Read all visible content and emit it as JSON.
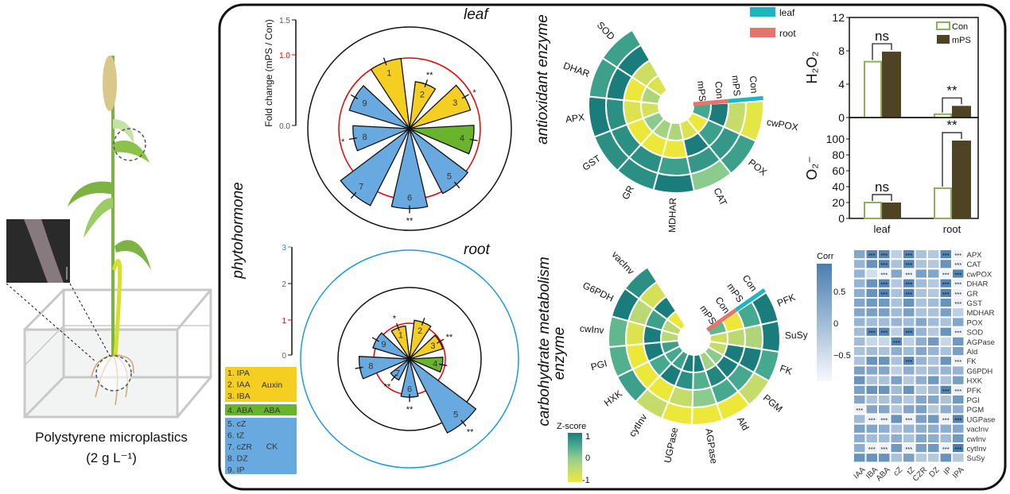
{
  "illustration": {
    "caption_line1": "Polystyrene microplastics",
    "caption_line2": "(2 g L⁻¹)"
  },
  "titles": {
    "leaf": "leaf",
    "root": "root",
    "phytohormone": "phytohormone",
    "antioxidant": "antioxidant enzyme",
    "carbohydrate_1": "carbohydrate metabolism",
    "carbohydrate_2": "enzyme"
  },
  "colors": {
    "auxin": "#F5CE22",
    "aba": "#6AB42D",
    "ck": "#68AADF",
    "leaf_bar": "#1FB5C0",
    "root_bar": "#E8736A",
    "con_bar_edge": "#8DB05A",
    "mps_bar": "#4E4424"
  },
  "phytohormone_legend": {
    "groups": [
      {
        "name": "Auxin",
        "items": [
          "1. IPA",
          "2. IAA",
          "3. IBA"
        ]
      },
      {
        "name": "ABA",
        "items": [
          "4. ABA"
        ]
      },
      {
        "name": "CK",
        "items": [
          "5. cZ",
          "6. tZ",
          "7. cZR",
          "8. DZ",
          "9. IP"
        ]
      }
    ]
  },
  "chart_data": [
    {
      "type": "rose",
      "panel": "leaf",
      "ylabel": "Fold change (mPS / Con)",
      "ticks": [
        "1.5",
        "1.0",
        "0.0"
      ],
      "ylim": [
        0,
        1.5
      ],
      "reference_circle": 1.0,
      "categories": [
        "1",
        "2",
        "3",
        "4",
        "5",
        "6",
        "7",
        "8",
        "9"
      ],
      "groups": [
        "auxin",
        "auxin",
        "auxin",
        "aba",
        "ck",
        "ck",
        "ck",
        "ck",
        "ck"
      ],
      "values": [
        1.0,
        0.67,
        0.9,
        0.91,
        1.03,
        1.13,
        1.22,
        0.8,
        0.89
      ],
      "significance": [
        "",
        "**",
        "*",
        "",
        "",
        "**",
        "",
        "*",
        ""
      ]
    },
    {
      "type": "rose",
      "panel": "root",
      "ticks": [
        "3",
        "2",
        "1",
        "0"
      ],
      "ylim": [
        0,
        3
      ],
      "reference_circle": 1.0,
      "categories": [
        "1",
        "2",
        "3",
        "4",
        "5",
        "6",
        "7",
        "8",
        "9"
      ],
      "groups": [
        "auxin",
        "auxin",
        "auxin",
        "aba",
        "ck",
        "ck",
        "ck",
        "ck",
        "ck"
      ],
      "values": [
        0.93,
        1.09,
        0.97,
        0.93,
        2.32,
        1.07,
        0.66,
        1.41,
        1.07
      ],
      "significance": [
        "*",
        "",
        "**",
        "",
        "**",
        "**",
        "**",
        "",
        ""
      ]
    },
    {
      "type": "heatmap",
      "layout": "circular",
      "panel": "antioxidant enzyme",
      "rings": [
        "mPS",
        "Con",
        "mPS",
        "Con"
      ],
      "ring_tissue": [
        "root",
        "root",
        "leaf",
        "leaf"
      ],
      "legend": [
        "leaf",
        "root"
      ],
      "categories": [
        "cwPOX",
        "POX",
        "CAT",
        "MDHAR",
        "GR",
        "GST",
        "APX",
        "DHAR",
        "SOD"
      ],
      "zscores": [
        [
          0.5,
          1,
          -0.5,
          -0.9
        ],
        [
          -1,
          0.6,
          0.7,
          0.6
        ],
        [
          -0.8,
          1,
          0.7,
          0
        ],
        [
          -0.3,
          -1,
          0.6,
          1
        ],
        [
          -0.2,
          -1,
          0.8,
          0.8
        ],
        [
          0,
          -1,
          0.8,
          0.8
        ],
        [
          -0.7,
          -0.8,
          0.8,
          1
        ],
        [
          -0.3,
          -1,
          1,
          0.6
        ],
        [
          -0.8,
          -0.6,
          1,
          0.6
        ]
      ]
    },
    {
      "type": "heatmap",
      "layout": "circular",
      "panel": "carbohydrate metabolism enzyme",
      "rings": [
        "mPS",
        "Con",
        "mPS",
        "Con"
      ],
      "ring_tissue": [
        "root",
        "root",
        "leaf",
        "leaf"
      ],
      "categories": [
        "PFK",
        "SuSy",
        "FK",
        "PGM",
        "Ald",
        "AGPase",
        "UGPase",
        "cytInv",
        "HXK",
        "PGI",
        "cwInv",
        "G6PDH",
        "vacInv"
      ],
      "zscores": [
        [
          0.3,
          -1,
          0.5,
          1
        ],
        [
          -0.6,
          -0.4,
          -0.3,
          1
        ],
        [
          -0.5,
          1,
          1,
          0.5
        ],
        [
          0,
          1,
          0.5,
          -0.5
        ],
        [
          -0.2,
          0.9,
          0.5,
          -1
        ],
        [
          1,
          0.4,
          0,
          -1
        ],
        [
          1,
          0.8,
          -0.5,
          -1
        ],
        [
          0.6,
          1,
          -1,
          -0.5
        ],
        [
          0.5,
          0.5,
          -1,
          0.6
        ],
        [
          0.6,
          1,
          -1,
          0.4
        ],
        [
          -0.4,
          1,
          -0.8,
          0.3
        ],
        [
          -0.4,
          0.6,
          -0.4,
          1
        ],
        [
          -1,
          1,
          -0.7,
          0.8
        ]
      ],
      "colorbar": {
        "title": "Z-score",
        "ticks": [
          "1",
          "0",
          "-1"
        ],
        "range": [
          -1,
          1
        ]
      }
    },
    {
      "type": "bar",
      "ylabel": "H₂O₂",
      "categories": [
        "leaf",
        "root"
      ],
      "series": [
        {
          "name": "Con",
          "values": [
            6.7,
            0.4
          ]
        },
        {
          "name": "mPS",
          "values": [
            7.9,
            1.4
          ]
        }
      ],
      "ylim": [
        0,
        12
      ],
      "ticks": [
        "12",
        "8",
        "4",
        "0"
      ],
      "significance": [
        "ns",
        "**"
      ]
    },
    {
      "type": "bar",
      "ylabel": "O₂⁻",
      "categories": [
        "leaf",
        "root"
      ],
      "series": [
        {
          "name": "Con",
          "values": [
            20,
            38
          ]
        },
        {
          "name": "mPS",
          "values": [
            20,
            98
          ]
        }
      ],
      "ylim": [
        0,
        105
      ],
      "ticks": [
        "100",
        "80",
        "60",
        "40",
        "20",
        "0"
      ],
      "significance": [
        "ns",
        "**"
      ]
    },
    {
      "type": "heatmap",
      "panel": "correlation",
      "colorbar": {
        "title": "Corr",
        "ticks": [
          "0.5",
          "0",
          "−0.5"
        ]
      },
      "columns": [
        "IAA",
        "IBA",
        "ABA",
        "cZ",
        "tZ",
        "CZR",
        "DZ",
        "IP",
        "IPA"
      ],
      "rows": [
        "APX",
        "CAT",
        "cwPOX",
        "DHAR",
        "GR",
        "GST",
        "MDHAR",
        "POX",
        "SOD",
        "AGPase",
        "Ald",
        "FK",
        "G6PDH",
        "HXK",
        "PFK",
        "PGI",
        "PGM",
        "UGPase",
        "vacInv",
        "cwInv",
        "cytInv",
        "SuSy"
      ],
      "values": [
        [
          0.3,
          0.8,
          0.8,
          -0.3,
          0.8,
          -0.1,
          -0.2,
          0.8,
          -0.8
        ],
        [
          0.1,
          0.6,
          0.8,
          -0.1,
          0.8,
          -0.1,
          -0.2,
          0.6,
          -0.8
        ],
        [
          0.1,
          -0.5,
          -0.8,
          0.3,
          -0.8,
          0.4,
          0.3,
          -0.8,
          0.8
        ],
        [
          0.1,
          0.6,
          0.8,
          -0.2,
          0.8,
          0.0,
          -0.2,
          0.8,
          -0.8
        ],
        [
          0.2,
          0.6,
          0.8,
          -0.1,
          0.8,
          -0.1,
          -0.2,
          0.8,
          -0.8
        ],
        [
          0.3,
          0.5,
          0.5,
          -0.1,
          0.6,
          -0.1,
          0.0,
          0.6,
          -0.8
        ],
        [
          0.3,
          0.4,
          0.4,
          0.0,
          0.4,
          -0.1,
          -0.1,
          0.4,
          -0.3
        ],
        [
          0.1,
          0.0,
          0.0,
          0.1,
          0.0,
          0.3,
          0.0,
          -0.1,
          0.3
        ],
        [
          0.0,
          0.8,
          0.8,
          -0.3,
          0.8,
          0.1,
          -0.2,
          0.6,
          -0.8
        ],
        [
          0.0,
          -0.4,
          -0.4,
          0.8,
          -0.3,
          0.2,
          0.5,
          -0.4,
          0.5
        ],
        [
          -0.1,
          0.0,
          -0.1,
          0.2,
          0.0,
          0.3,
          0.1,
          -0.1,
          0.4
        ],
        [
          -0.1,
          0.6,
          0.6,
          -0.1,
          0.8,
          0.1,
          -0.1,
          0.6,
          -0.8
        ],
        [
          0.4,
          0.3,
          0.3,
          -0.3,
          0.2,
          -0.1,
          0.0,
          0.1,
          0.1
        ],
        [
          0.6,
          -0.1,
          -0.1,
          0.4,
          -0.2,
          0.2,
          0.5,
          -0.1,
          0.4
        ],
        [
          0.4,
          0.6,
          0.6,
          0.0,
          0.6,
          -0.2,
          0.0,
          0.8,
          -0.8
        ],
        [
          0.3,
          -0.1,
          -0.1,
          0.1,
          -0.2,
          0.3,
          0.3,
          -0.1,
          0.5
        ],
        [
          -0.8,
          0.3,
          0.3,
          -0.2,
          0.3,
          0.4,
          -0.2,
          0.2,
          0.2
        ],
        [
          0.0,
          -0.8,
          -0.8,
          0.6,
          -0.8,
          0.4,
          0.5,
          -0.8,
          0.8
        ],
        [
          0.4,
          0.3,
          0.2,
          -0.1,
          0.1,
          0.2,
          0.2,
          0.2,
          0.3
        ],
        [
          0.2,
          0.0,
          0.0,
          0.2,
          -0.1,
          0.3,
          0.2,
          0.0,
          0.5
        ],
        [
          0.2,
          -0.8,
          -0.8,
          0.5,
          -0.8,
          0.4,
          0.5,
          -0.8,
          0.9
        ],
        [
          0.6,
          0.6,
          0.6,
          -0.1,
          0.4,
          -0.2,
          -0.2,
          0.6,
          -0.2
        ]
      ],
      "stars": [
        [
          "",
          "***",
          "***",
          "",
          "***",
          "",
          "",
          "***",
          "***"
        ],
        [
          "",
          "",
          "***",
          "",
          "***",
          "",
          "",
          "",
          "***"
        ],
        [
          "",
          "",
          "***",
          "",
          "***",
          "",
          "",
          "***",
          "***"
        ],
        [
          "",
          "",
          "***",
          "",
          "***",
          "",
          "",
          "***",
          "***"
        ],
        [
          "",
          "",
          "***",
          "",
          "***",
          "",
          "",
          "***",
          "***"
        ],
        [
          "",
          "",
          "",
          "",
          "",
          "",
          "",
          "",
          "***"
        ],
        [
          "",
          "",
          "",
          "",
          "",
          "",
          "",
          "",
          ""
        ],
        [
          "",
          "",
          "",
          "",
          "",
          "",
          "",
          "",
          ""
        ],
        [
          "",
          "***",
          "***",
          "",
          "***",
          "",
          "",
          "",
          "***"
        ],
        [
          "",
          "",
          "",
          "***",
          "",
          "",
          "",
          "",
          ""
        ],
        [
          "",
          "",
          "",
          "",
          "",
          "",
          "",
          "",
          ""
        ],
        [
          "",
          "",
          "",
          "",
          "***",
          "",
          "",
          "",
          "***"
        ],
        [
          "",
          "",
          "",
          "",
          "",
          "",
          "",
          "",
          ""
        ],
        [
          "",
          "",
          "",
          "",
          "",
          "",
          "",
          "",
          ""
        ],
        [
          "",
          "",
          "",
          "",
          "",
          "",
          "",
          "***",
          "***"
        ],
        [
          "",
          "",
          "",
          "",
          "",
          "",
          "",
          "",
          ""
        ],
        [
          "***",
          "",
          "",
          "",
          "",
          "",
          "",
          "",
          ""
        ],
        [
          "",
          "***",
          "***",
          "",
          "***",
          "",
          "",
          "***",
          "***"
        ],
        [
          "",
          "",
          "",
          "",
          "",
          "",
          "",
          "",
          ""
        ],
        [
          "",
          "",
          "",
          "",
          "",
          "",
          "",
          "",
          ""
        ],
        [
          "",
          "***",
          "***",
          "",
          "***",
          "",
          "",
          "***",
          "***"
        ],
        [
          "",
          "",
          "",
          "",
          "",
          "",
          "",
          "",
          ""
        ]
      ]
    }
  ]
}
